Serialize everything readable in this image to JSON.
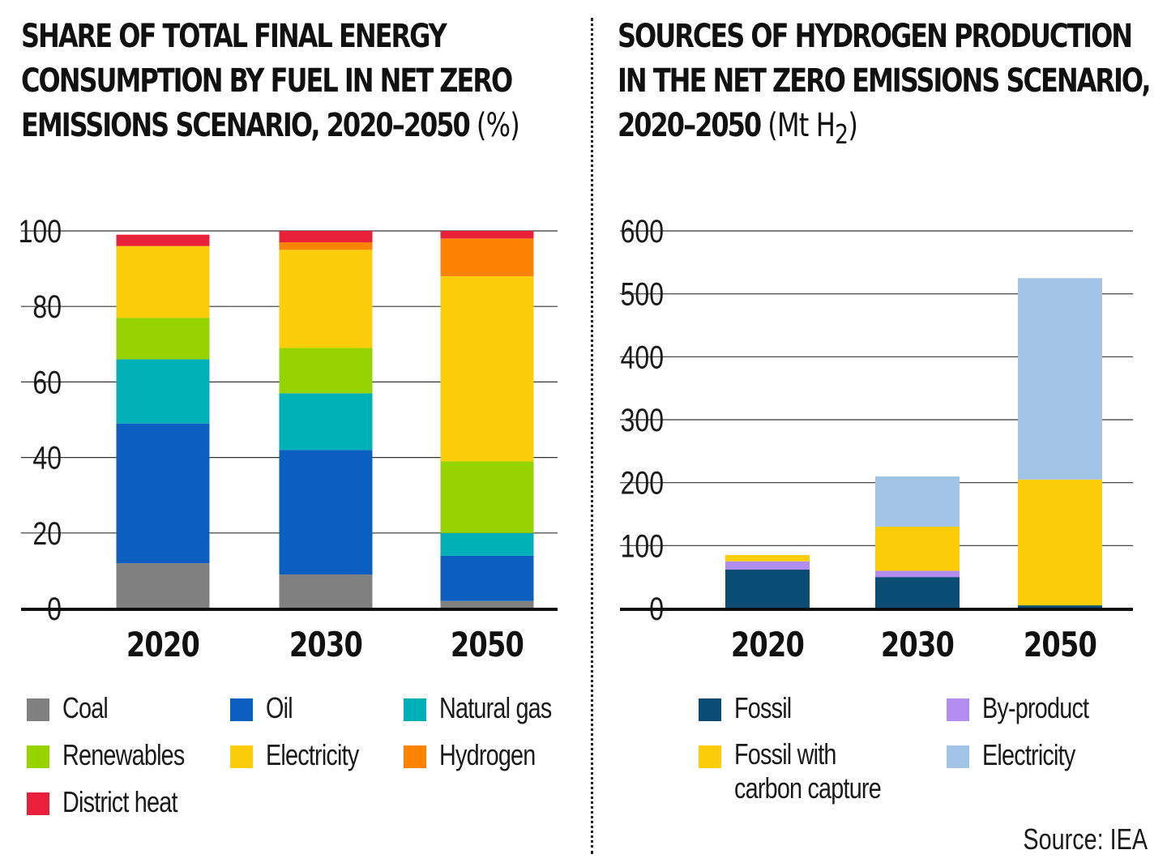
{
  "left_chart": {
    "title_lines": [
      "SHARE OF TOTAL FINAL ENERGY",
      "CONSUMPTION BY FUEL IN NET ZERO",
      "EMISSIONS SCENARIO, 2020–2050"
    ],
    "title_unit": "(%)",
    "legend": [
      {
        "label": "Coal",
        "color": "#808080"
      },
      {
        "label": "Oil",
        "color": "#0a5fc0"
      },
      {
        "label": "Natural gas",
        "color": "#00b0b9"
      },
      {
        "label": "Renewables",
        "color": "#96d400"
      },
      {
        "label": "Electricity",
        "color": "#fccd0a"
      },
      {
        "label": "Hydrogen",
        "color": "#fc8204"
      },
      {
        "label": "District heat",
        "color": "#e8203a"
      }
    ]
  },
  "right_chart": {
    "title_lines": [
      "SOURCES OF HYDROGEN PRODUCTION",
      "IN THE NET ZERO EMISSIONS SCENARIO,",
      "2020–2050"
    ],
    "title_unit": "(Mt H",
    "title_unit_sub": "2",
    "title_unit_close": ")",
    "legend": [
      {
        "label": "Fossil",
        "color": "#0a4c73"
      },
      {
        "label": "By-product",
        "color": "#b28df0"
      },
      {
        "label": "Fossil with\ncarbon capture",
        "color": "#fccd0a"
      },
      {
        "label": "Electricity",
        "color": "#a1c4e6"
      }
    ]
  },
  "source": "Source: IEA",
  "chart_data": [
    {
      "type": "bar",
      "stacked": true,
      "title": "SHARE OF TOTAL FINAL ENERGY CONSUMPTION BY FUEL IN NET ZERO EMISSIONS SCENARIO, 2020–2050 (%)",
      "categories": [
        "2020",
        "2030",
        "2050"
      ],
      "y_ticks": [
        0,
        20,
        40,
        60,
        80,
        100
      ],
      "ylim": [
        0,
        100
      ],
      "grid": true,
      "legend_position": "bottom",
      "series": [
        {
          "name": "Coal",
          "color": "#808080",
          "values": [
            12,
            9,
            2
          ]
        },
        {
          "name": "Oil",
          "color": "#0a5fc0",
          "values": [
            37,
            33,
            12
          ]
        },
        {
          "name": "Natural gas",
          "color": "#00b0b9",
          "values": [
            17,
            15,
            6
          ]
        },
        {
          "name": "Renewables",
          "color": "#96d400",
          "values": [
            11,
            12,
            19
          ]
        },
        {
          "name": "Electricity",
          "color": "#fccd0a",
          "values": [
            19,
            26,
            49
          ]
        },
        {
          "name": "Hydrogen",
          "color": "#fc8204",
          "values": [
            0,
            2,
            10
          ]
        },
        {
          "name": "District heat",
          "color": "#e8203a",
          "values": [
            3,
            3,
            2
          ]
        }
      ]
    },
    {
      "type": "bar",
      "stacked": true,
      "title": "SOURCES OF HYDROGEN PRODUCTION IN THE NET ZERO EMISSIONS SCENARIO, 2020–2050 (Mt H2)",
      "categories": [
        "2020",
        "2030",
        "2050"
      ],
      "y_ticks": [
        0,
        100,
        200,
        300,
        400,
        500,
        600
      ],
      "ylim": [
        0,
        600
      ],
      "grid": true,
      "legend_position": "bottom",
      "series": [
        {
          "name": "Fossil",
          "color": "#0a4c73",
          "values": [
            62,
            50,
            5
          ]
        },
        {
          "name": "By-product",
          "color": "#b28df0",
          "values": [
            13,
            10,
            0
          ]
        },
        {
          "name": "Fossil with carbon capture",
          "color": "#fccd0a",
          "values": [
            10,
            70,
            200
          ]
        },
        {
          "name": "Electricity",
          "color": "#a1c4e6",
          "values": [
            0,
            80,
            320
          ]
        }
      ]
    }
  ]
}
